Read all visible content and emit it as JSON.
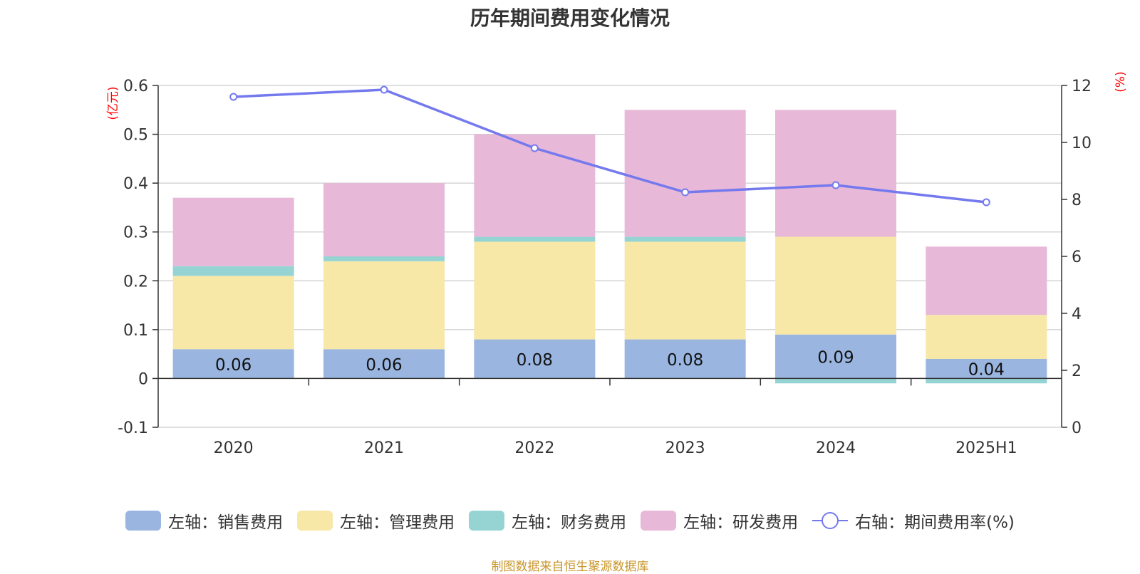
{
  "chart_data": {
    "type": "bar",
    "title": "历年期间费用变化情况",
    "categories": [
      "2020",
      "2021",
      "2022",
      "2023",
      "2024",
      "2025H1"
    ],
    "left_axis": {
      "unit": "(亿元)",
      "ylim": [
        -0.1,
        0.6
      ],
      "ticks": [
        "-0.1",
        "0",
        "0.1",
        "0.2",
        "0.3",
        "0.4",
        "0.5",
        "0.6"
      ]
    },
    "right_axis": {
      "unit": "(%)",
      "ylim": [
        0,
        12
      ],
      "ticks": [
        "0",
        "2",
        "4",
        "6",
        "8",
        "10",
        "12"
      ]
    },
    "series": [
      {
        "name": "左轴：销售费用",
        "axis": "left",
        "kind": "bar",
        "color": "#9ab6e0",
        "values": [
          0.06,
          0.06,
          0.08,
          0.08,
          0.09,
          0.04
        ],
        "labels": [
          "0.06",
          "0.06",
          "0.08",
          "0.08",
          "0.09",
          "0.04"
        ]
      },
      {
        "name": "左轴：管理费用",
        "axis": "left",
        "kind": "bar",
        "color": "#f8e8a8",
        "values": [
          0.15,
          0.18,
          0.2,
          0.2,
          0.2,
          0.09
        ]
      },
      {
        "name": "左轴：财务费用",
        "axis": "left",
        "kind": "bar",
        "color": "#96d4d4",
        "values": [
          0.02,
          0.01,
          0.01,
          0.01,
          -0.01,
          -0.01
        ]
      },
      {
        "name": "左轴：研发费用",
        "axis": "left",
        "kind": "bar",
        "color": "#e8b8d8",
        "values": [
          0.14,
          0.15,
          0.21,
          0.26,
          0.26,
          0.14
        ]
      },
      {
        "name": "右轴：期间费用率(%)",
        "axis": "right",
        "kind": "line",
        "color": "#7479ee",
        "values": [
          11.6,
          11.85,
          9.8,
          8.25,
          8.5,
          7.9
        ]
      }
    ],
    "grid": true,
    "legend_position": "bottom"
  },
  "source": "制图数据来自恒生聚源数据库"
}
